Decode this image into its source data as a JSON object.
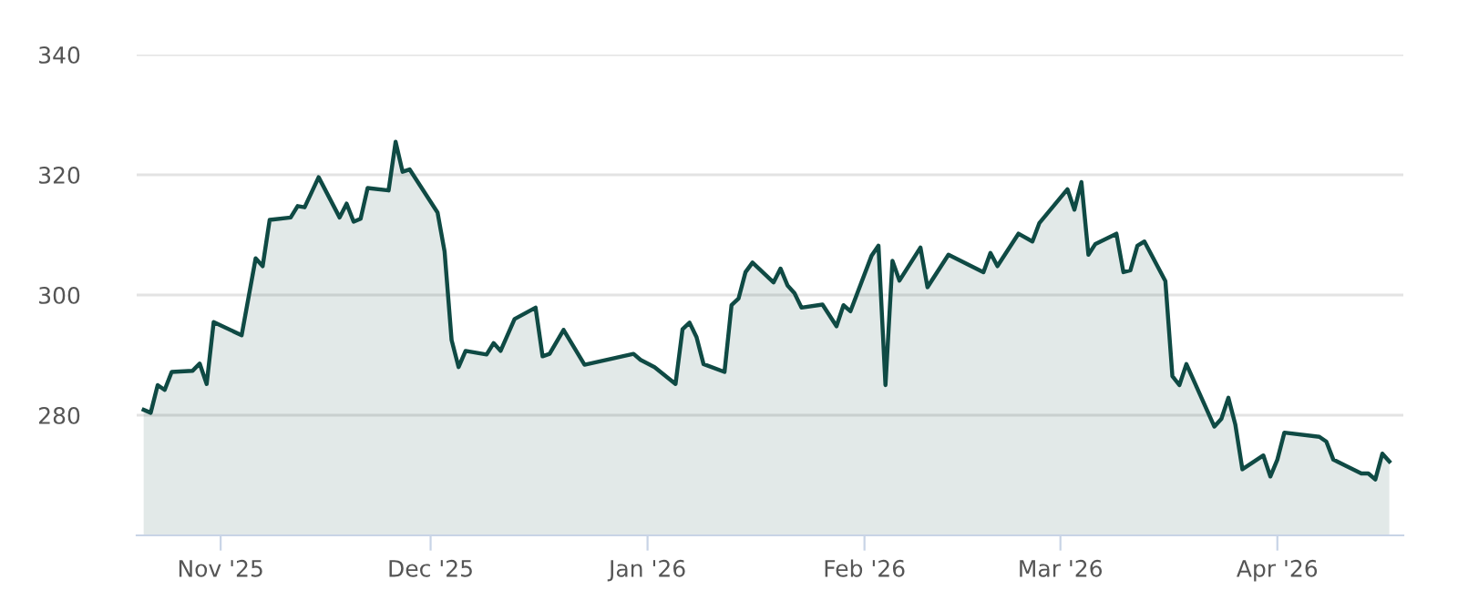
{
  "chart_data": {
    "type": "area",
    "x": [
      "2025-10-21",
      "2025-10-22",
      "2025-10-23",
      "2025-10-24",
      "2025-10-25",
      "2025-10-28",
      "2025-10-29",
      "2025-10-30",
      "2025-10-31",
      "2025-11-04",
      "2025-11-06",
      "2025-11-07",
      "2025-11-08",
      "2025-11-11",
      "2025-11-12",
      "2025-11-13",
      "2025-11-15",
      "2025-11-18",
      "2025-11-19",
      "2025-11-20",
      "2025-11-21",
      "2025-11-22",
      "2025-11-25",
      "2025-11-26",
      "2025-11-27",
      "2025-11-28",
      "2025-12-02",
      "2025-12-03",
      "2025-12-04",
      "2025-12-05",
      "2025-12-06",
      "2025-12-09",
      "2025-12-10",
      "2025-12-11",
      "2025-12-13",
      "2025-12-16",
      "2025-12-17",
      "2025-12-18",
      "2025-12-20",
      "2025-12-23",
      "2025-12-30",
      "2025-12-31",
      "2026-01-02",
      "2026-01-05",
      "2026-01-06",
      "2026-01-07",
      "2026-01-08",
      "2026-01-09",
      "2026-01-12",
      "2026-01-13",
      "2026-01-14",
      "2026-01-15",
      "2026-01-16",
      "2026-01-19",
      "2026-01-20",
      "2026-01-21",
      "2026-01-22",
      "2026-01-23",
      "2026-01-26",
      "2026-01-28",
      "2026-01-29",
      "2026-01-30",
      "2026-02-02",
      "2026-02-03",
      "2026-02-04",
      "2026-02-05",
      "2026-02-06",
      "2026-02-09",
      "2026-02-10",
      "2026-02-13",
      "2026-02-18",
      "2026-02-19",
      "2026-02-20",
      "2026-02-23",
      "2026-02-25",
      "2026-02-26",
      "2026-03-02",
      "2026-03-03",
      "2026-03-04",
      "2026-03-05",
      "2026-03-06",
      "2026-03-09",
      "2026-03-10",
      "2026-03-11",
      "2026-03-12",
      "2026-03-13",
      "2026-03-16",
      "2026-03-17",
      "2026-03-18",
      "2026-03-19",
      "2026-03-23",
      "2026-03-24",
      "2026-03-25",
      "2026-03-26",
      "2026-03-27",
      "2026-03-30",
      "2026-03-31",
      "2026-04-01",
      "2026-04-02",
      "2026-04-07",
      "2026-04-08",
      "2026-04-09",
      "2026-04-13",
      "2026-04-14",
      "2026-04-15",
      "2026-04-16",
      "2026-04-17"
    ],
    "series": [
      {
        "color": "#0f4a44",
        "values": [
          280.9,
          280.4,
          285.0,
          284.2,
          287.2,
          287.4,
          288.6,
          285.2,
          295.5,
          293.3,
          306.1,
          304.8,
          312.5,
          312.9,
          314.8,
          314.6,
          319.6,
          312.9,
          315.2,
          312.2,
          312.7,
          317.8,
          317.4,
          325.5,
          320.5,
          320.9,
          313.7,
          307.2,
          292.5,
          288.0,
          290.7,
          290.1,
          292.0,
          290.7,
          296.0,
          297.9,
          289.8,
          290.2,
          294.2,
          288.4,
          290.2,
          289.2,
          288.0,
          285.2,
          294.3,
          295.4,
          293.0,
          288.5,
          287.2,
          298.3,
          299.4,
          303.8,
          305.4,
          302.1,
          304.4,
          301.6,
          300.3,
          297.9,
          298.4,
          294.8,
          298.3,
          297.3,
          306.5,
          308.2,
          285.0,
          305.7,
          302.4,
          307.9,
          301.3,
          306.7,
          303.8,
          307.0,
          304.8,
          310.2,
          308.9,
          312.0,
          317.6,
          314.2,
          318.8,
          306.7,
          308.5,
          310.2,
          303.8,
          304.1,
          308.2,
          308.9,
          302.3,
          286.5,
          285.0,
          288.5,
          278.1,
          279.4,
          282.9,
          278.4,
          271.0,
          273.3,
          269.8,
          272.6,
          277.1,
          276.4,
          275.6,
          272.6,
          270.3,
          270.3,
          269.3,
          273.6,
          272.3
        ]
      }
    ],
    "xlim": [
      "2025-10-20",
      "2026-04-19"
    ],
    "xticks": [
      {
        "value": "2025-11-01",
        "label": "Nov '25"
      },
      {
        "value": "2025-12-01",
        "label": "Dec '25"
      },
      {
        "value": "2026-01-01",
        "label": "Jan '26"
      },
      {
        "value": "2026-02-01",
        "label": "Feb '26"
      },
      {
        "value": "2026-03-01",
        "label": "Mar '26"
      },
      {
        "value": "2026-04-01",
        "label": "Apr '26"
      }
    ],
    "ylim": [
      260,
      340
    ],
    "yticks": [
      280,
      300,
      320,
      340
    ],
    "grid": "y",
    "legend": false
  }
}
